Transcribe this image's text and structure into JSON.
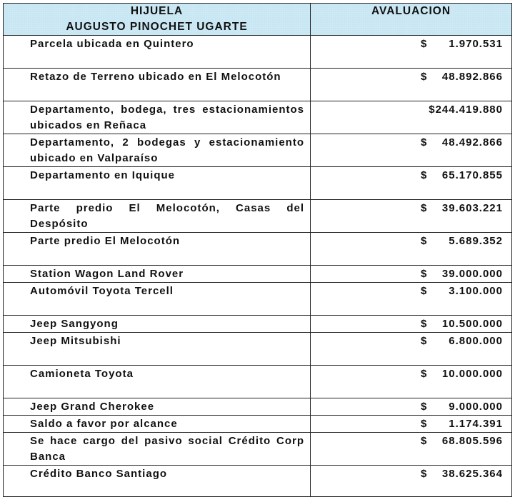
{
  "header": {
    "col1_line1": "HIJUELA",
    "col1_line2": "AUGUSTO PINOCHET UGARTE",
    "col2": "AVALUACION"
  },
  "rows": [
    {
      "description": "Parcela ubicada en Quintero",
      "currency": "$",
      "amount": "1.970.531"
    },
    {
      "description": "Retazo de Terreno ubicado en El Melocotón",
      "currency": "$",
      "amount": "48.892.866"
    },
    {
      "description": "Departamento, bodega, tres estacionamientos ubicados en Reñaca",
      "currency": "$",
      "amount": "244.419.880"
    },
    {
      "description": "Departamento, 2 bodegas y estacionamiento ubicado en Valparaíso",
      "currency": "$",
      "amount": "48.492.866"
    },
    {
      "description": "Departamento en Iquique",
      "currency": "$",
      "amount": "65.170.855"
    },
    {
      "description": "Parte predio El Melocotón, Casas del Despósito",
      "currency": "$",
      "amount": "39.603.221"
    },
    {
      "description": "Parte predio El Melocotón",
      "currency": "$",
      "amount": "5.689.352"
    },
    {
      "description": "Station Wagon Land Rover",
      "currency": "$",
      "amount": "39.000.000"
    },
    {
      "description": "Automóvil  Toyota Tercell",
      "currency": "$",
      "amount": "3.100.000"
    },
    {
      "description": "Jeep  Sangyong",
      "currency": "$",
      "amount": "10.500.000"
    },
    {
      "description": "Jeep Mitsubishi",
      "currency": "$",
      "amount": "6.800.000"
    },
    {
      "description": "Camioneta Toyota",
      "currency": "$",
      "amount": "10.000.000"
    },
    {
      "description": "Jeep Grand Cherokee",
      "currency": "$",
      "amount": "9.000.000"
    },
    {
      "description": "Saldo a favor por alcance",
      "currency": "$",
      "amount": "1.174.391"
    },
    {
      "description": "Se hace cargo del pasivo social Crédito  Corp Banca",
      "currency": "$",
      "amount": "68.805.596"
    },
    {
      "description": "Crédito Banco Santiago",
      "currency": "$",
      "amount": "38.625.364"
    }
  ]
}
